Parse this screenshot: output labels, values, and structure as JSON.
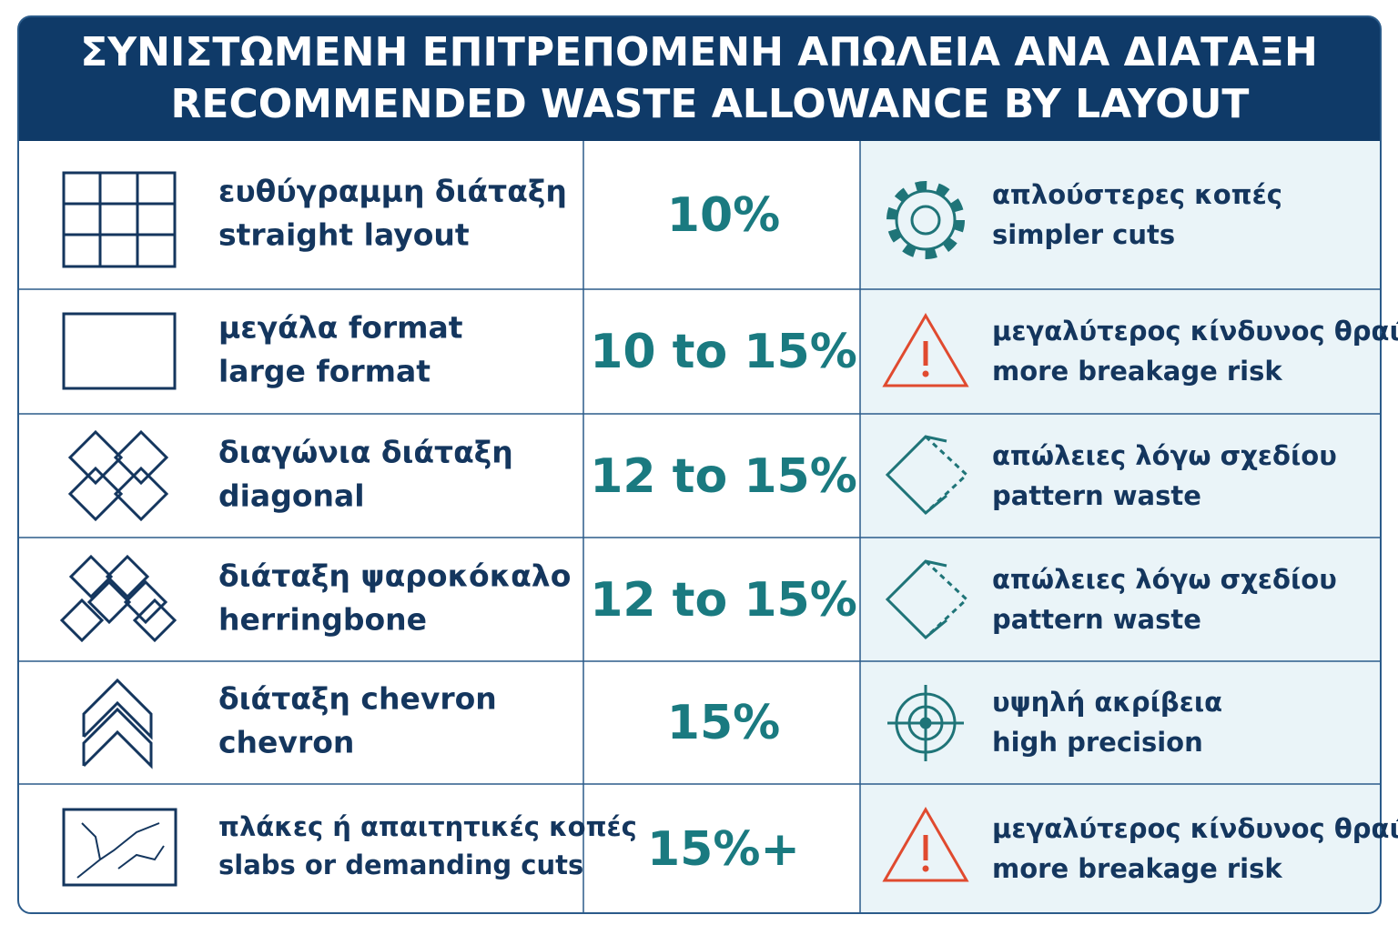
{
  "header": {
    "title_gr": "ΣΥΝΙΣΤΩΜΕΝΗ ΕΠΙΤΡΕΠΟΜΕΝΗ ΑΠΩΛΕΙΑ ΑΝΑ ΔΙΑΤΑΞΗ",
    "title_en": "RECOMMENDED WASTE ALLOWANCE BY LAYOUT"
  },
  "table": {
    "rows": [
      {
        "layout_gr": "ευθύγραμμη διάταξη",
        "layout_en": "straight layout",
        "waste": "10%",
        "note_gr": "απλούστερες κοπές",
        "note_en": "simpler cuts"
      },
      {
        "layout_gr": "μεγάλα format",
        "layout_en": "large format",
        "waste": "10 to 15%",
        "note_gr": "μεγαλύτερος κίνδυνος θραύσης",
        "note_en": "more breakage risk"
      },
      {
        "layout_gr": "διαγώνια διάταξη",
        "layout_en": "diagonal",
        "waste": "12 to 15%",
        "note_gr": "απώλειες λόγω σχεδίου",
        "note_en": "pattern waste"
      },
      {
        "layout_gr": "διάταξη ψαροκόκαλο",
        "layout_en": "herringbone",
        "waste": "12 to 15%",
        "note_gr": "απώλειες λόγω σχεδίου",
        "note_en": "pattern waste"
      },
      {
        "layout_gr": "διάταξη chevron",
        "layout_en": "chevron",
        "waste": "15%",
        "note_gr": "υψηλή ακρίβεια",
        "note_en": "high precision"
      },
      {
        "layout_gr": "πλάκες ή απαιτητικές κοπές",
        "layout_en": "slabs or demanding cuts",
        "waste": "15%+",
        "note_gr": "μεγαλύτερος κίνδυνος θραύσης",
        "note_en": "more breakage risk"
      }
    ]
  }
}
